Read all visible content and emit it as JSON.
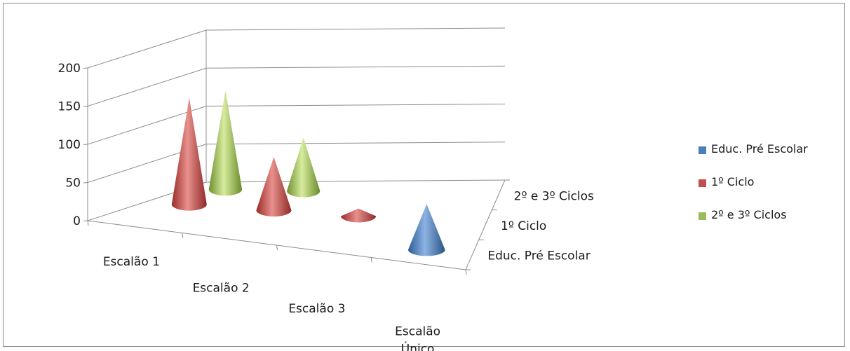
{
  "chart_data": {
    "type": "bar",
    "subtype": "3d-cone",
    "categories": [
      "Escalão 1",
      "Escalão 2",
      "Escalão 3",
      "Escalão Único"
    ],
    "depth_categories": [
      "Educ. Pré Escolar",
      "1º Ciclo",
      "2º e 3º Ciclos"
    ],
    "series": [
      {
        "name": "Educ. Pré Escolar",
        "color": "#4a7ebb",
        "values": [
          0,
          0,
          0,
          60
        ]
      },
      {
        "name": "1º Ciclo",
        "color": "#c0504d",
        "values": [
          140,
          70,
          10,
          0
        ]
      },
      {
        "name": "2º e 3º Ciclos",
        "color": "#9bbb59",
        "values": [
          130,
          70,
          0,
          0
        ]
      }
    ],
    "ylim": [
      0,
      200
    ],
    "yticks": [
      0,
      50,
      100,
      150,
      200
    ],
    "grid": true,
    "legend": "right",
    "title": "",
    "xlabel": "",
    "ylabel": ""
  }
}
